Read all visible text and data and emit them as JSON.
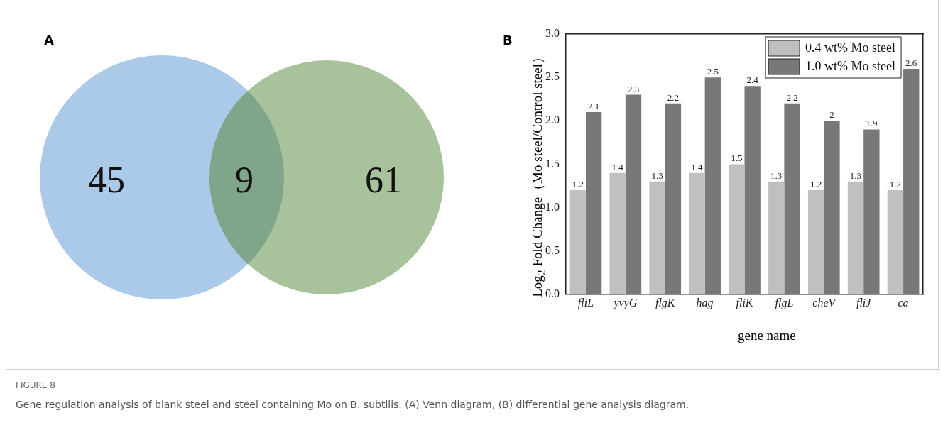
{
  "chart_data": [
    {
      "type": "other",
      "title": "A",
      "categories": [
        null,
        null,
        null
      ],
      "values": [
        45,
        9,
        61
      ],
      "data_labels": true,
      "colors": [
        "#abc9e8",
        "#7fa68b",
        "#a8c39b"
      ],
      "annotations": [
        "FIGURE 8",
        "Gene regulation analysis of blank steel and steel containing Mo on B. subtilis. (A) Venn diagram, (B) differential gene analysis diagram."
      ]
    },
    {
      "type": "bar",
      "title": "B",
      "xlabel": "gene name",
      "ylabel": "Log$_{2}$ Fold Change（Mo steel/Control steel）",
      "categories": [
        "fliL",
        "yvyG",
        "flgK",
        "hag",
        "fliK",
        "flgL",
        "cheV",
        "fliJ",
        "ca"
      ],
      "series": [
        {
          "name": "0.4 wt% Mo steel",
          "color": "#c0c0c0",
          "values": [
            1.2,
            1.4,
            1.3,
            1.4,
            1.5,
            1.3,
            1.2,
            1.3,
            1.2
          ]
        },
        {
          "name": "1.0 wt% Mo steel",
          "color": "#787878",
          "values": [
            2.1,
            2.3,
            2.2,
            2.5,
            2.4,
            2.2,
            2.0,
            1.9,
            2.6
          ]
        }
      ],
      "ylim": [
        0,
        3
      ],
      "yticks": [
        {
          "value": 0,
          "label": "0.0"
        },
        {
          "value": 0.5,
          "label": "0.5"
        },
        {
          "value": 1,
          "label": "1.0"
        },
        {
          "value": 1.5,
          "label": "1.5"
        },
        {
          "value": 2,
          "label": "2.0"
        },
        {
          "value": 2.5,
          "label": "2.5"
        },
        {
          "value": 3,
          "label": "3.0"
        }
      ],
      "grid": false,
      "legend": "top right",
      "data_labels": true
    }
  ]
}
